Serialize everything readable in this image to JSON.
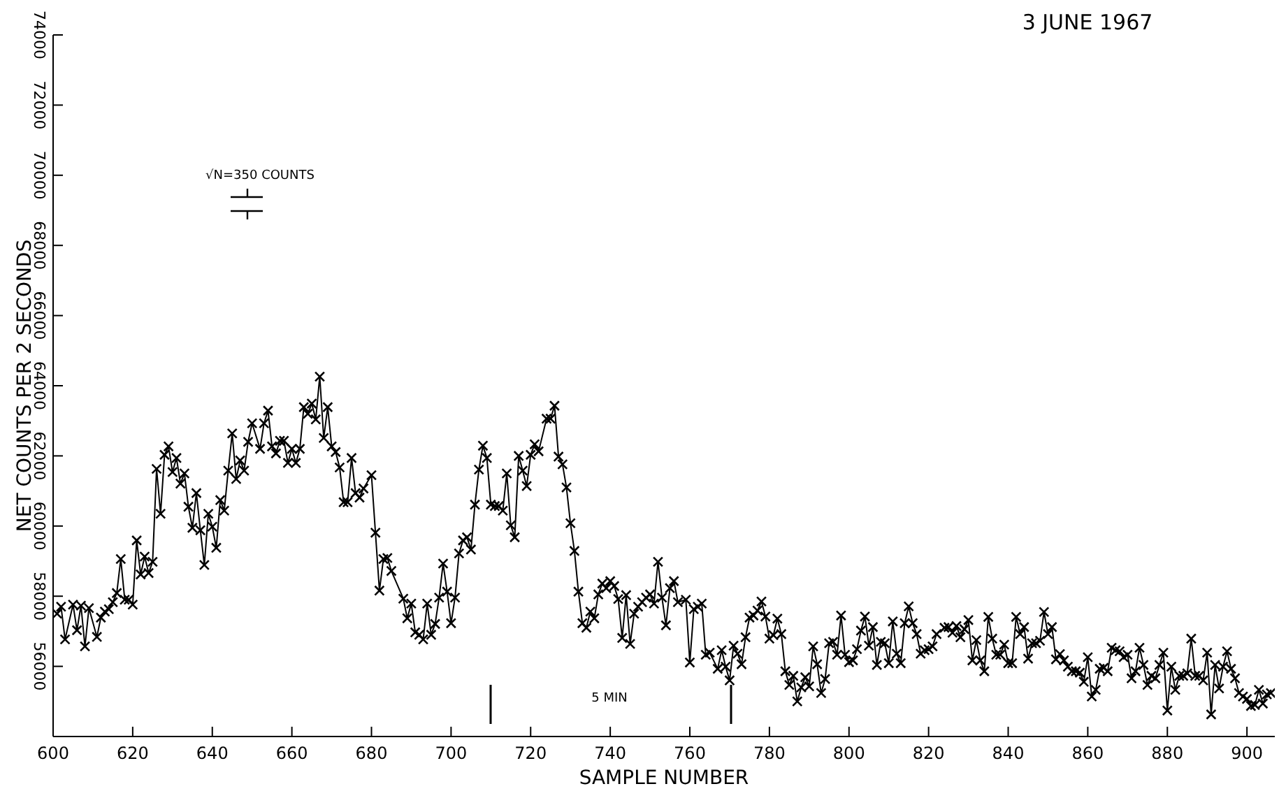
{
  "chart_data": {
    "type": "line",
    "title": "3 JUNE 1967",
    "xlabel": "SAMPLE NUMBER",
    "ylabel": "NET COUNTS PER 2 SECONDS",
    "annotations": [
      "√N=350 COUNTS",
      "5 MIN"
    ],
    "xlim": [
      600,
      907
    ],
    "xticks": [
      600,
      620,
      640,
      660,
      680,
      700,
      720,
      740,
      760,
      780,
      800,
      820,
      840,
      860,
      880,
      900
    ],
    "ylim": [
      54000,
      74000
    ],
    "yticks": [
      56000,
      58000,
      60000,
      62000,
      64000,
      66000,
      68000,
      70000,
      72000,
      74000
    ],
    "marker": "cross",
    "line_style": "solid",
    "series": [
      {
        "color": "#000000",
        "x": [
          601,
          602,
          603,
          605,
          606,
          607,
          608,
          609,
          611,
          612,
          613,
          614,
          615,
          616,
          617,
          618,
          619,
          620,
          621,
          622,
          623,
          624,
          625,
          626,
          627,
          628,
          629,
          630,
          631,
          632,
          633,
          634,
          635,
          636,
          637,
          638,
          639,
          640,
          641,
          642,
          643,
          644,
          645,
          646,
          647,
          648,
          649,
          650,
          652,
          653,
          654,
          655,
          656,
          657,
          658,
          659,
          660,
          661,
          662,
          663,
          664,
          665,
          666,
          667,
          668,
          669,
          670,
          671,
          672,
          673,
          674,
          675,
          676,
          677,
          678,
          680,
          681,
          682,
          683,
          684,
          685,
          688,
          689,
          690,
          691,
          692,
          693,
          694,
          695,
          696,
          697,
          698,
          699,
          700,
          701,
          702,
          703,
          704,
          705,
          706,
          707,
          708,
          709,
          710,
          711,
          712,
          713,
          714,
          715,
          716,
          717,
          718,
          719,
          720,
          721,
          722,
          724,
          725,
          726,
          727,
          728,
          729,
          730,
          731,
          732,
          733,
          734,
          735,
          736,
          737,
          738,
          739,
          740,
          741,
          742,
          743,
          744,
          745,
          746,
          747,
          748,
          749,
          750,
          751,
          752,
          753,
          754,
          755,
          756,
          757,
          759,
          760,
          761,
          762,
          763,
          764,
          765,
          767,
          768,
          769,
          770,
          771,
          772,
          773,
          774,
          775,
          776,
          777,
          778,
          779,
          780,
          781,
          782,
          783,
          784,
          785,
          786,
          787,
          788,
          789,
          790,
          791,
          792,
          793,
          794,
          795,
          796,
          797,
          798,
          799,
          800,
          801,
          802,
          803,
          804,
          805,
          806,
          807,
          808,
          809,
          810,
          811,
          812,
          813,
          814,
          815,
          816,
          817,
          818,
          819,
          820,
          821,
          822,
          824,
          825,
          826,
          827,
          828,
          829,
          830,
          831,
          832,
          833,
          834,
          835,
          836,
          837,
          838,
          839,
          840,
          841,
          842,
          843,
          844,
          845,
          846,
          847,
          848,
          849,
          850,
          851,
          852,
          853,
          854,
          855,
          856,
          857,
          858,
          859,
          860,
          861,
          862,
          863,
          864,
          865,
          866,
          867,
          868,
          869,
          870,
          871,
          872,
          873,
          874,
          875,
          876,
          877,
          878,
          879,
          880,
          881,
          882,
          883,
          884,
          885,
          886,
          887,
          888,
          889,
          890,
          891,
          892,
          893,
          894,
          895,
          896,
          897,
          898,
          899,
          900,
          901,
          902,
          903,
          904,
          905,
          906
        ],
        "values": [
          57500,
          57700,
          56770,
          57760,
          57030,
          57730,
          56570,
          57660,
          56840,
          57390,
          57560,
          57630,
          57830,
          58090,
          59060,
          57900,
          57900,
          57760,
          59590,
          58620,
          59130,
          58660,
          58980,
          61630,
          60350,
          62030,
          62270,
          61540,
          61940,
          61210,
          61500,
          60550,
          59950,
          60940,
          59880,
          58890,
          60350,
          59980,
          59380,
          60740,
          60440,
          61580,
          62640,
          61340,
          61870,
          61580,
          62400,
          62930,
          62200,
          62930,
          63290,
          62270,
          62070,
          62430,
          62430,
          61800,
          62200,
          61800,
          62200,
          63390,
          63200,
          63490,
          63040,
          64260,
          62510,
          63390,
          62270,
          62110,
          61670,
          60680,
          60680,
          61940,
          60940,
          60810,
          61070,
          61450,
          59810,
          58160,
          59060,
          59090,
          58720,
          57930,
          57370,
          57790,
          56970,
          56900,
          56770,
          57790,
          56900,
          57210,
          57960,
          58930,
          58130,
          57230,
          57960,
          59220,
          59590,
          59680,
          59330,
          60610,
          61610,
          62290,
          61940,
          60610,
          60570,
          60570,
          60440,
          61500,
          60020,
          59680,
          62000,
          61580,
          61140,
          62030,
          62330,
          62130,
          63060,
          63060,
          63430,
          61980,
          61760,
          61100,
          60080,
          59290,
          58130,
          57230,
          57100,
          57560,
          57370,
          58050,
          58360,
          58230,
          58430,
          58290,
          57920,
          56810,
          58030,
          56640,
          57500,
          57700,
          57830,
          57960,
          58050,
          57790,
          58980,
          57960,
          57170,
          58230,
          58430,
          57830,
          57900,
          56110,
          57630,
          57700,
          57790,
          56330,
          56390,
          55930,
          56460,
          55990,
          55600,
          56590,
          56360,
          56060,
          56830,
          57390,
          57450,
          57590,
          57850,
          57420,
          56790,
          56890,
          57360,
          56920,
          55860,
          55470,
          55730,
          55000,
          55400,
          55690,
          55430,
          56570,
          56060,
          55240,
          55640,
          56660,
          56700,
          56330,
          57450,
          56330,
          56120,
          56170,
          56490,
          57020,
          57420,
          56590,
          57120,
          56040,
          56700,
          56660,
          56090,
          57280,
          56360,
          56090,
          57230,
          57710,
          57230,
          56920,
          56360,
          56460,
          56490,
          56570,
          56920,
          57100,
          57120,
          56960,
          57150,
          56830,
          57060,
          57320,
          56170,
          56750,
          56170,
          55860,
          57410,
          56790,
          56330,
          56330,
          56620,
          56090,
          56090,
          57410,
          56920,
          57120,
          56220,
          56660,
          56660,
          56730,
          57550,
          56920,
          57120,
          56200,
          56350,
          56170,
          55990,
          55860,
          55860,
          55820,
          55560,
          56260,
          55140,
          55330,
          55930,
          55960,
          55860,
          56530,
          56460,
          56430,
          56260,
          56330,
          55660,
          55860,
          56530,
          56040,
          55470,
          55730,
          55660,
          56040,
          56390,
          54740,
          55990,
          55330,
          55730,
          55730,
          55800,
          56790,
          55730,
          55730,
          55600,
          56390,
          54630,
          56040,
          55370,
          55990,
          56430,
          55930,
          55660,
          55240,
          55140,
          55070,
          54870,
          54900,
          55330,
          54940,
          55200,
          55240
        ]
      }
    ]
  }
}
